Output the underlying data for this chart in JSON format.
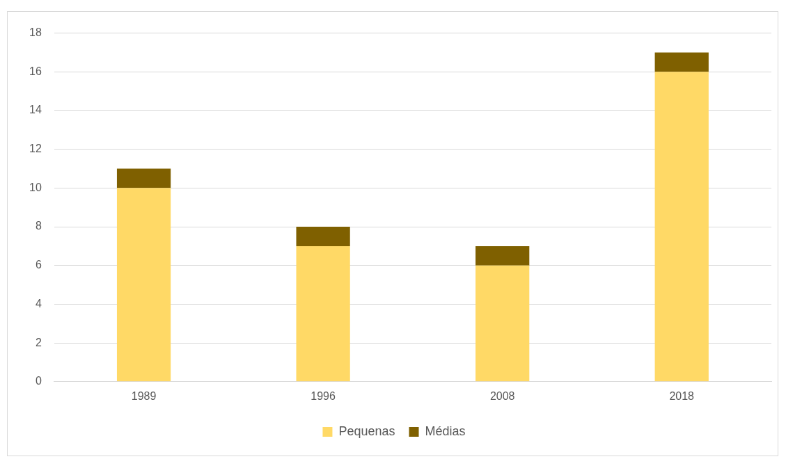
{
  "chart_data": {
    "type": "bar",
    "stacked": true,
    "categories": [
      "1989",
      "1996",
      "2008",
      "2018"
    ],
    "series": [
      {
        "name": "Pequenas",
        "color": "#ffd966",
        "values": [
          10,
          7,
          6,
          16
        ]
      },
      {
        "name": "Médias",
        "color": "#7f6000",
        "values": [
          1,
          1,
          1,
          1
        ]
      }
    ],
    "ylim": [
      0,
      18
    ],
    "yticks": [
      0,
      2,
      4,
      6,
      8,
      10,
      12,
      14,
      16,
      18
    ],
    "grid": "y",
    "legend": "bottom"
  }
}
